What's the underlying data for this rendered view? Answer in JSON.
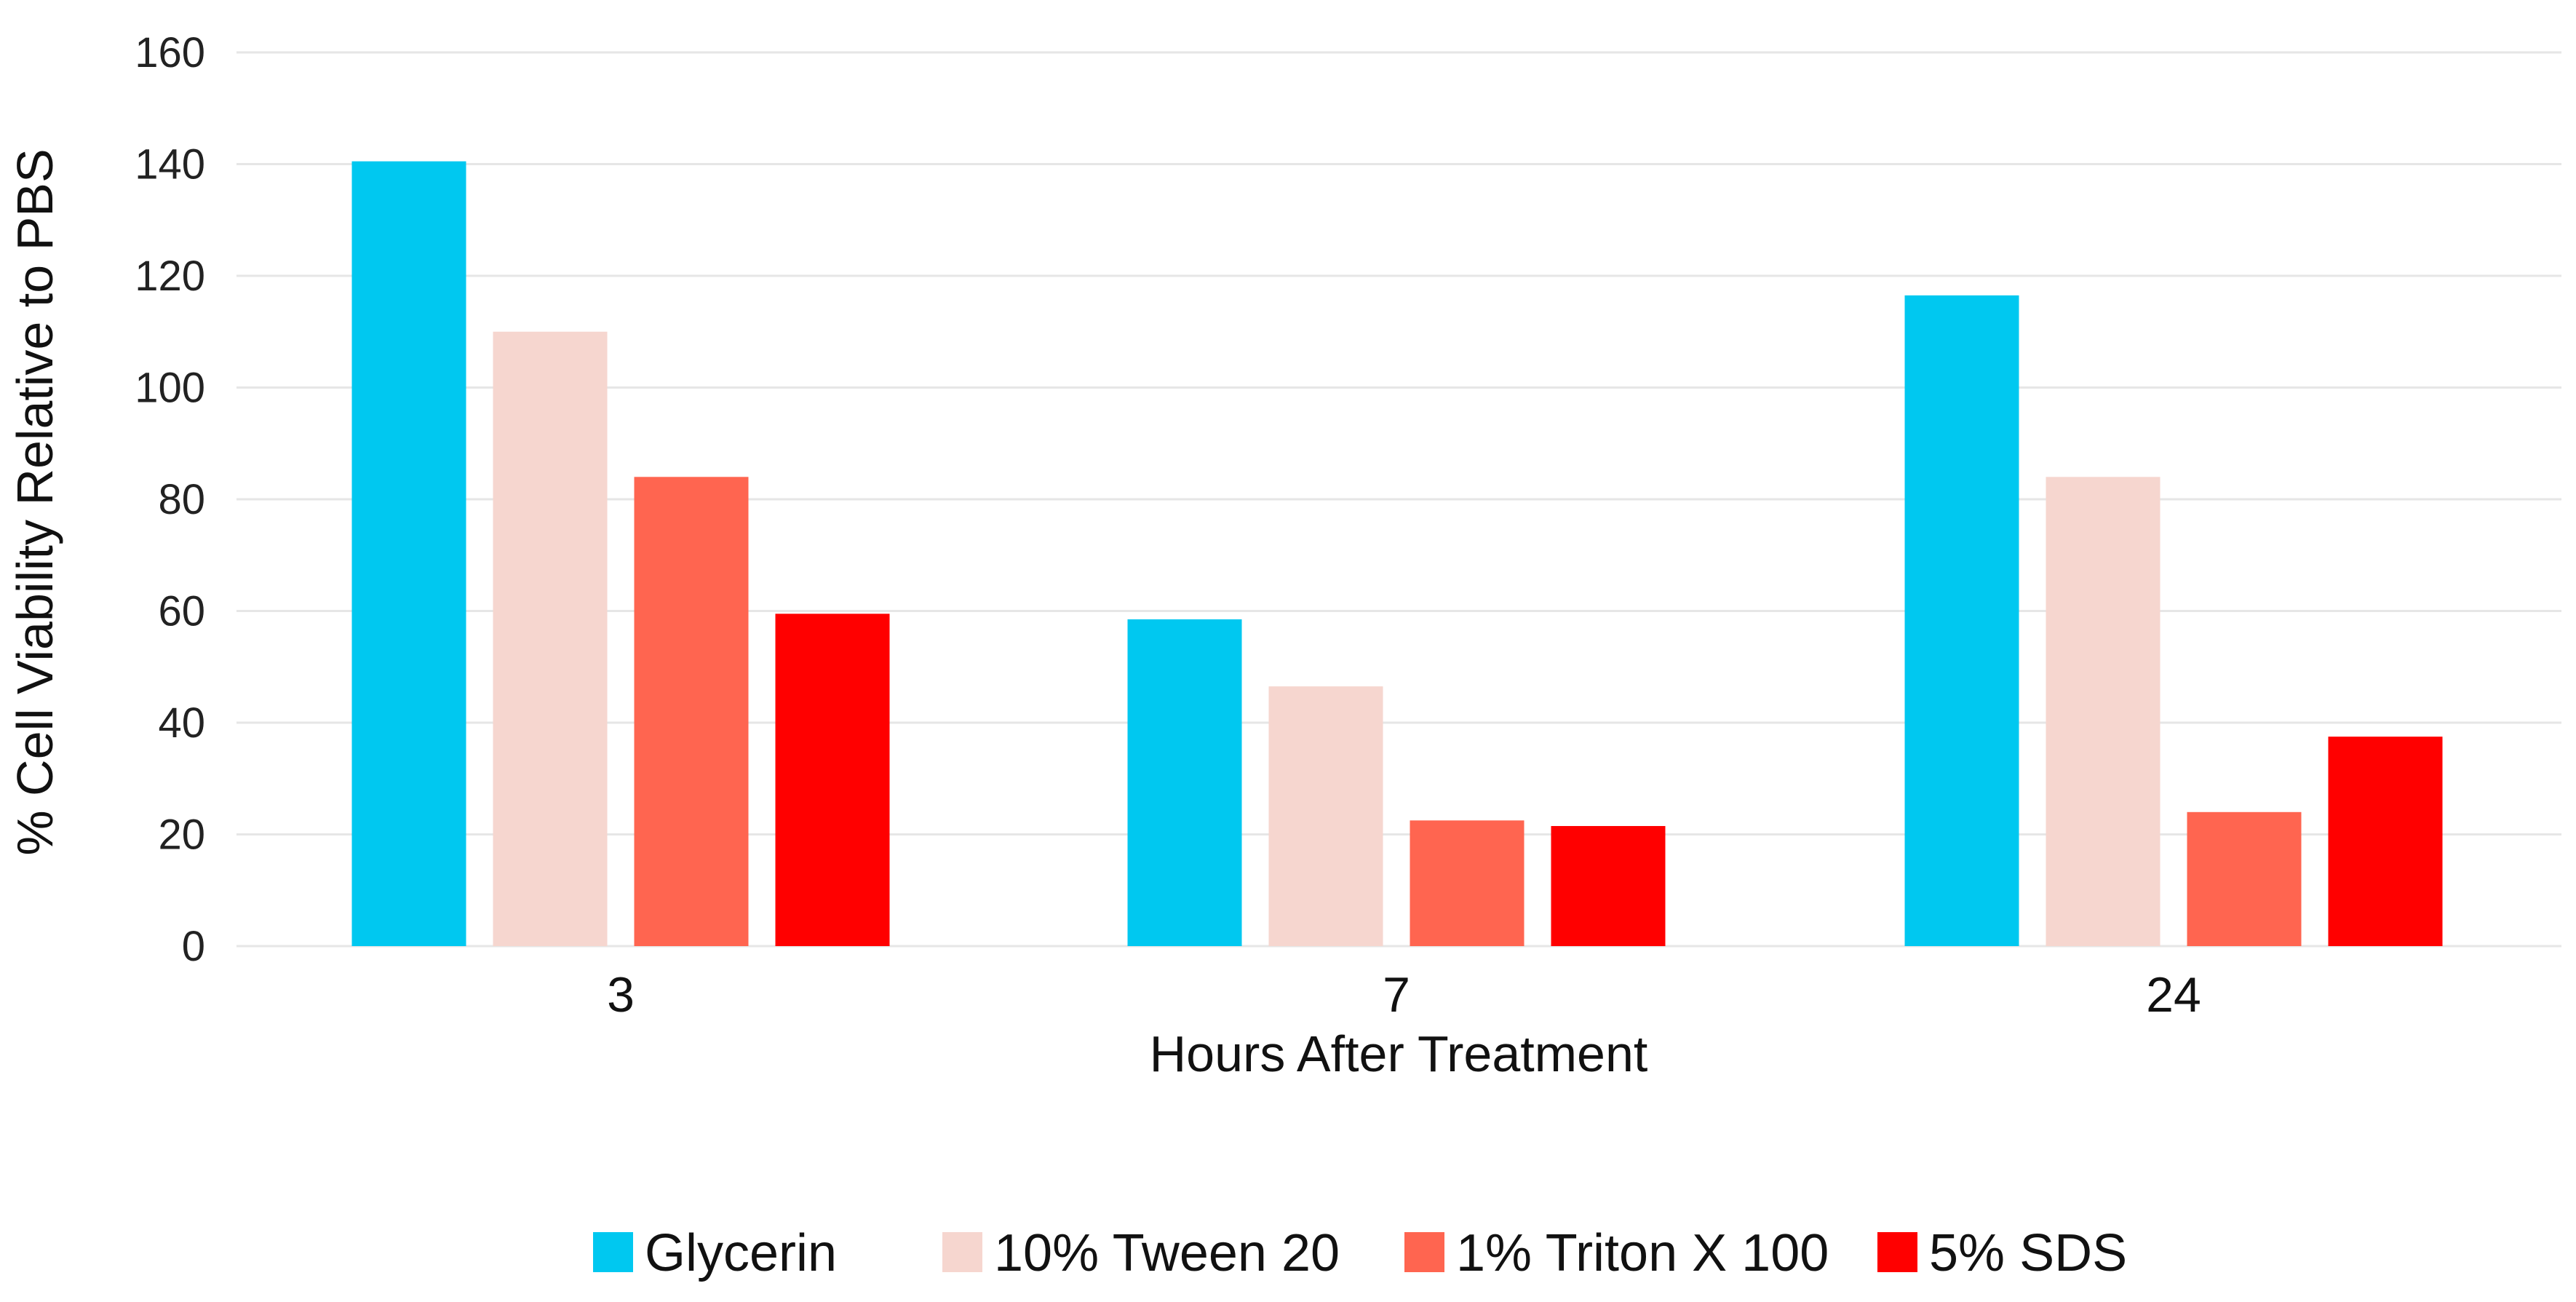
{
  "chart_data": {
    "type": "bar",
    "title": "",
    "xlabel": "Hours After Treatment",
    "ylabel": "% Cell Viability Relative to PBS",
    "ylim": [
      0,
      160
    ],
    "yticks": [
      0,
      20,
      40,
      60,
      80,
      100,
      120,
      140,
      160
    ],
    "categories": [
      "3",
      "7",
      "24"
    ],
    "grid": "horizontal",
    "legend_position": "bottom",
    "series": [
      {
        "name": "Glycerin",
        "color": "#00c8f0",
        "values": [
          140.5,
          58.5,
          116.5
        ]
      },
      {
        "name": "10% Tween 20",
        "color": "#f6d6cf",
        "values": [
          110,
          46.5,
          84
        ]
      },
      {
        "name": "1% Triton X 100",
        "color": "#ff6550",
        "values": [
          84,
          22.5,
          24
        ]
      },
      {
        "name": "5% SDS",
        "color": "#ff0000",
        "values": [
          59.5,
          21.5,
          37.5
        ]
      }
    ]
  }
}
